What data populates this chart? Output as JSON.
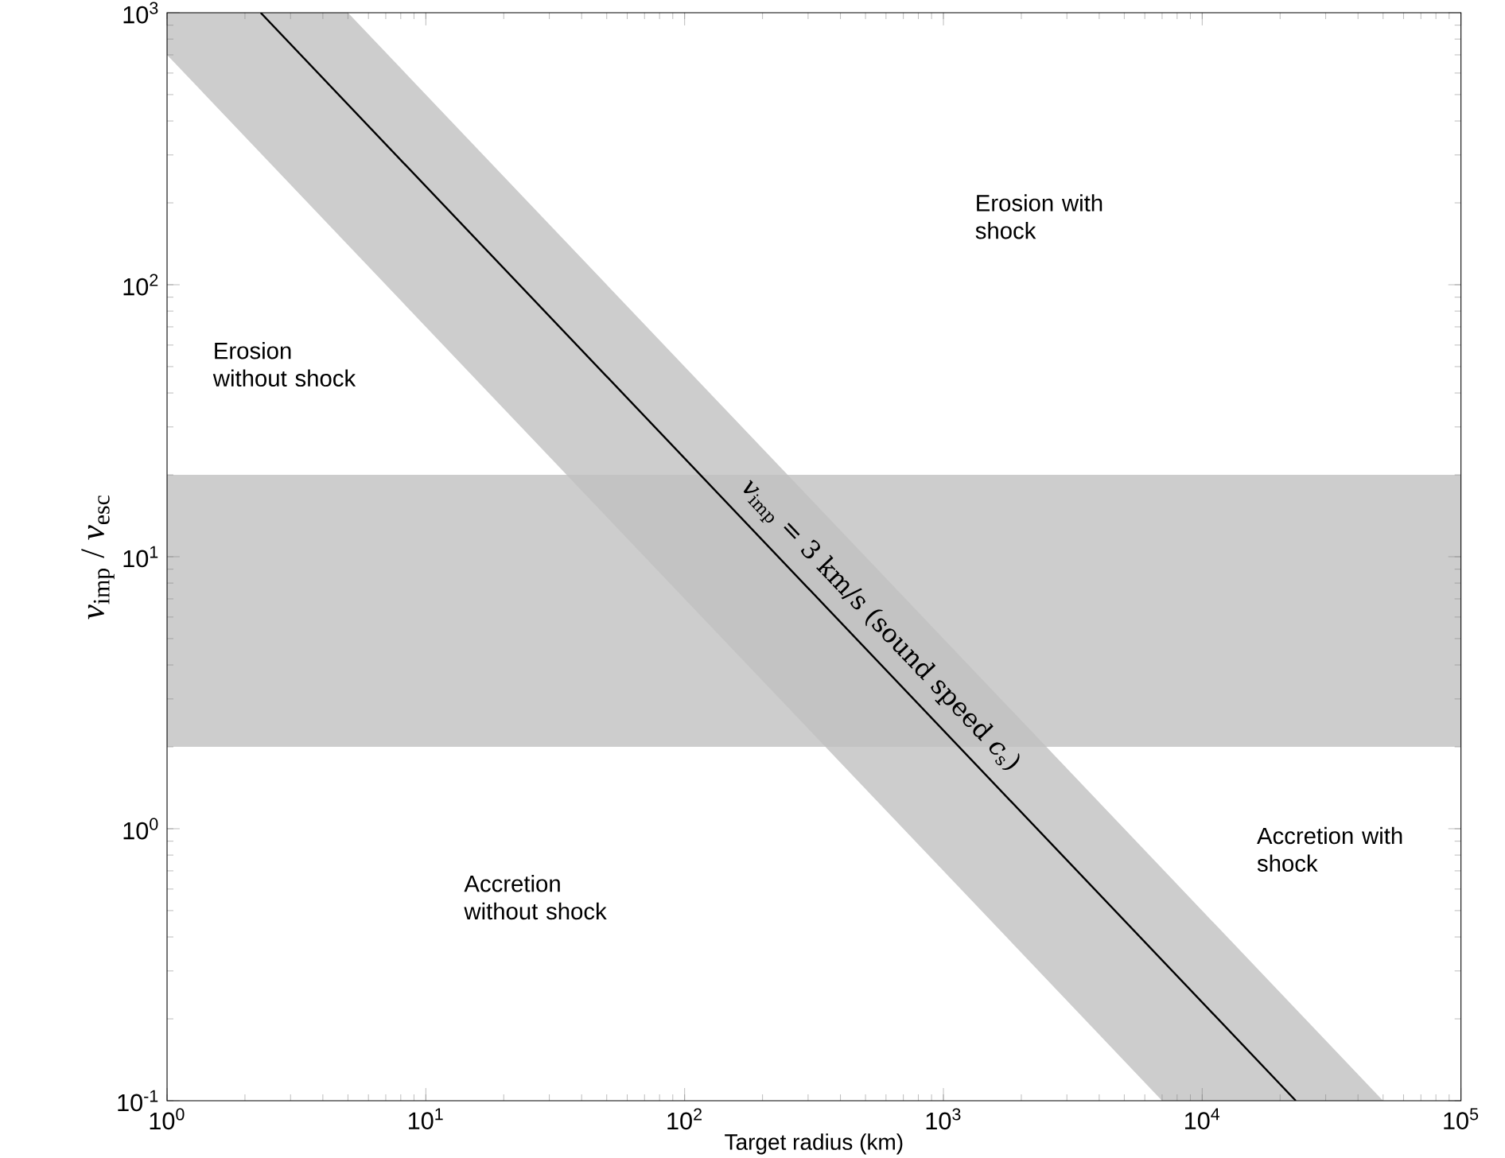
{
  "chart_data": {
    "type": "line",
    "xlabel": "Target radius (km)",
    "ylabel": "*v*$_{imp}$ / *v*$_{esc}$",
    "log": "xy",
    "grid": false,
    "marker": "none",
    "line_style": "solid",
    "xlim": [
      1,
      100000
    ],
    "ylim": [
      0.1,
      1000
    ],
    "xticks": [
      {
        "value": 1,
        "label": "10$^{0}$"
      },
      {
        "value": 10,
        "label": "10$^{1}$"
      },
      {
        "value": 100,
        "label": "10$^{2}$"
      },
      {
        "value": 1000,
        "label": "10$^{3}$"
      },
      {
        "value": 10000,
        "label": "10$^{4}$"
      },
      {
        "value": 100000,
        "label": "10$^{5}$"
      }
    ],
    "yticks": [
      {
        "value": 0.1,
        "label": "10$^{-1}$"
      },
      {
        "value": 1,
        "label": "10$^{0}$"
      },
      {
        "value": 10,
        "label": "10$^{1}$"
      },
      {
        "value": 100,
        "label": "10$^{2}$"
      },
      {
        "value": 1000,
        "label": "10$^{3}$"
      }
    ],
    "series": [
      {
        "name": "*v*$_{imp}$ = 3 km/s (sound speed *c*$_{s}$)",
        "color": "#000000",
        "x": [
          1,
          5,
          2.3,
          7000,
          23000,
          50000
        ],
        "values": [
          null,
          null,
          1000,
          null,
          0.1,
          null
        ],
        "lower": [
          700,
          140,
          null,
          0.1,
          null,
          0.1
        ],
        "upper": [
          1000,
          1000,
          null,
          0.714,
          null,
          0.1
        ]
      }
    ],
    "bands": [
      {
        "axis": "y",
        "from": 2,
        "to": 20,
        "color": "#c0c0c0"
      }
    ],
    "annotations": [
      "Erosion with shock",
      "Erosion without shock",
      "Accretion with shock",
      "Accretion without shock"
    ]
  }
}
